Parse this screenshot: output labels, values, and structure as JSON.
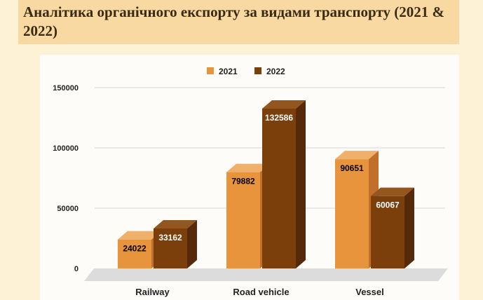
{
  "title": "Аналітика органічного експорту за видами транспорту (2021 & 2022)",
  "colors": {
    "series_2021": "#e8943c",
    "series_2021_top": "#f0b06a",
    "series_2021_side": "#c0702a",
    "series_2022": "#7b3f0c",
    "series_2022_top": "#94561f",
    "series_2022_side": "#55290a"
  },
  "chart_data": {
    "type": "bar",
    "title": "Аналітика органічного експорту за видами транспорту (2021 & 2022)",
    "categories": [
      "Railway",
      "Road vehicle",
      "Vessel"
    ],
    "series": [
      {
        "name": "2021",
        "values": [
          24022,
          79882,
          90651
        ]
      },
      {
        "name": "2022",
        "values": [
          33162,
          132586,
          60067
        ]
      }
    ],
    "ylim": [
      0,
      150000
    ],
    "yticks": [
      0,
      50000,
      100000,
      150000
    ],
    "grid": true,
    "legend": "top-center",
    "style": "3d"
  }
}
